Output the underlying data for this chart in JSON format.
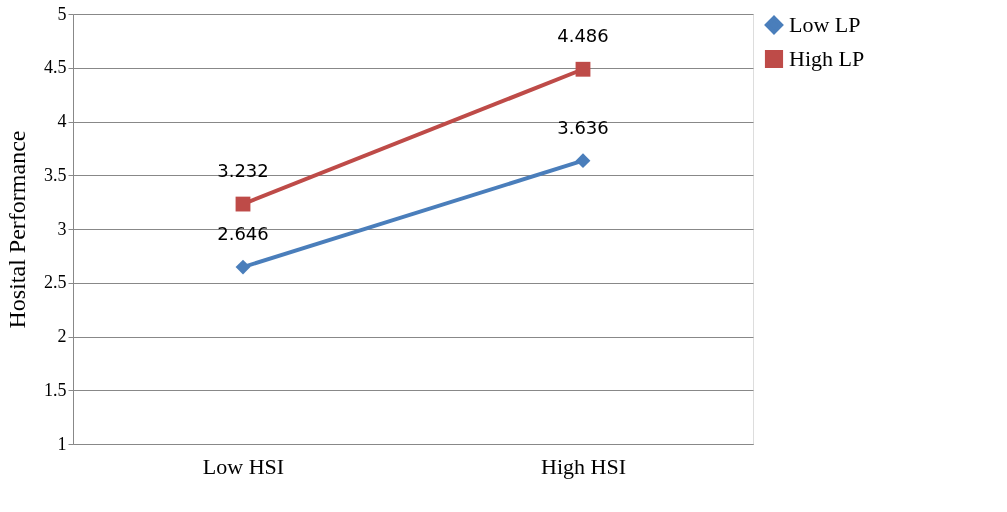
{
  "chart_data": {
    "type": "line",
    "ylabel": "Hosital Performance",
    "categories": [
      "Low HSI",
      "High HSI"
    ],
    "series": [
      {
        "name": "Low LP",
        "color": "#4a7ebb",
        "marker": "diamond",
        "values": [
          2.646,
          3.636
        ]
      },
      {
        "name": "High LP",
        "color": "#be4b48",
        "marker": "square",
        "values": [
          3.232,
          4.486
        ]
      }
    ],
    "ylim": [
      1,
      5
    ],
    "yticks": [
      1,
      1.5,
      2,
      2.5,
      3,
      3.5,
      4,
      4.5,
      5
    ],
    "grid": "y",
    "legend": "right",
    "data_labels": true,
    "line_style": "solid"
  }
}
